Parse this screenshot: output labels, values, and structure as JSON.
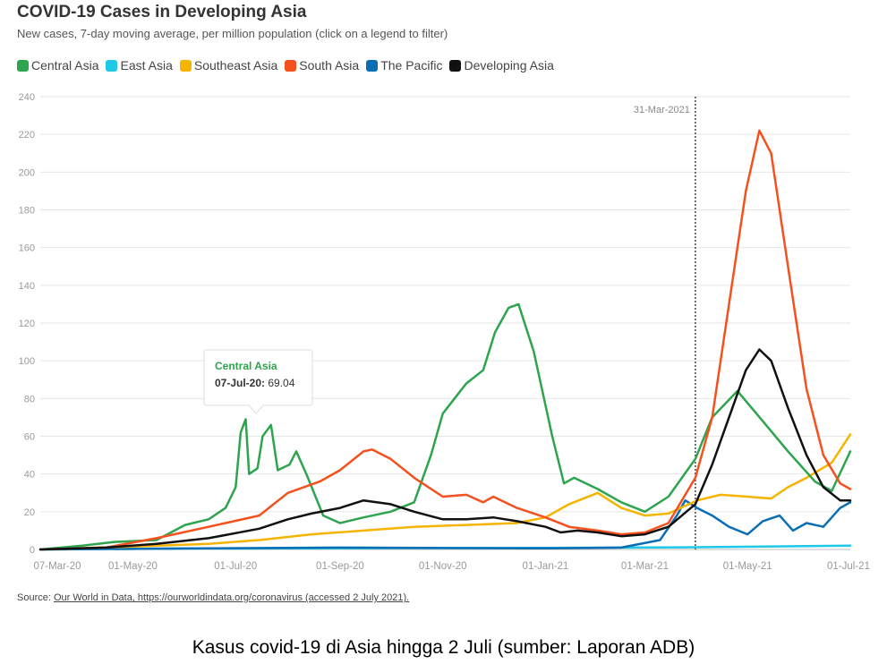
{
  "header": {
    "title": "COVID-19 Cases in Developing Asia",
    "subtitle": "New cases, 7-day moving average, per million population (click on a legend to filter)"
  },
  "footer": {
    "source_label": "Source:",
    "source_link_text": "Our World in Data, https://ourworldindata.org/coronavirus (accessed 2 July 2021).",
    "caption": "Kasus covid-19 di Asia hingga 2 Juli (sumber: Laporan ADB)"
  },
  "chart_data": {
    "type": "line",
    "title": "COVID-19 Cases in Developing Asia",
    "subtitle": "New cases, 7-day moving average, per million population (click on a legend to filter)",
    "xlabel": "",
    "ylabel": "",
    "x_tick_labels": [
      "07-Mar-20",
      "01-May-20",
      "01-Jul-20",
      "01-Sep-20",
      "01-Nov-20",
      "01-Jan-21",
      "01-Mar-21",
      "01-May-21",
      "01-Jul-21"
    ],
    "xlim": [
      "2020-03-07",
      "2021-07-01"
    ],
    "ylim": [
      0,
      240
    ],
    "yticks": [
      0,
      20,
      40,
      60,
      80,
      100,
      120,
      140,
      160,
      180,
      200,
      220,
      240
    ],
    "grid": true,
    "legend_position": "top-left",
    "annotation": {
      "date": "2021-03-31",
      "label": "31-Mar-2021"
    },
    "tooltip": {
      "series": "Central Asia",
      "date_label": "07-Jul-20:",
      "value": "69.04"
    },
    "series": [
      {
        "name": "Central Asia",
        "color": "#2ea44f",
        "points": [
          [
            "2020-03-07",
            0
          ],
          [
            "2020-04-01",
            2
          ],
          [
            "2020-04-20",
            4
          ],
          [
            "2020-05-15",
            5
          ],
          [
            "2020-06-01",
            13
          ],
          [
            "2020-06-15",
            16
          ],
          [
            "2020-06-25",
            22
          ],
          [
            "2020-07-01",
            33
          ],
          [
            "2020-07-04",
            62
          ],
          [
            "2020-07-07",
            69
          ],
          [
            "2020-07-09",
            40
          ],
          [
            "2020-07-14",
            43
          ],
          [
            "2020-07-17",
            60
          ],
          [
            "2020-07-22",
            66
          ],
          [
            "2020-07-26",
            42
          ],
          [
            "2020-08-02",
            45
          ],
          [
            "2020-08-06",
            52
          ],
          [
            "2020-08-12",
            40
          ],
          [
            "2020-08-22",
            18
          ],
          [
            "2020-09-01",
            14
          ],
          [
            "2020-09-15",
            17
          ],
          [
            "2020-10-01",
            20
          ],
          [
            "2020-10-15",
            25
          ],
          [
            "2020-10-25",
            50
          ],
          [
            "2020-11-01",
            72
          ],
          [
            "2020-11-08",
            80
          ],
          [
            "2020-11-15",
            88
          ],
          [
            "2020-11-25",
            95
          ],
          [
            "2020-12-02",
            115
          ],
          [
            "2020-12-10",
            128
          ],
          [
            "2020-12-16",
            130
          ],
          [
            "2020-12-25",
            105
          ],
          [
            "2021-01-05",
            60
          ],
          [
            "2021-01-12",
            35
          ],
          [
            "2021-01-18",
            38
          ],
          [
            "2021-02-01",
            32
          ],
          [
            "2021-02-15",
            25
          ],
          [
            "2021-03-01",
            20
          ],
          [
            "2021-03-15",
            28
          ],
          [
            "2021-03-31",
            48
          ],
          [
            "2021-04-10",
            70
          ],
          [
            "2021-04-25",
            84
          ],
          [
            "2021-05-10",
            68
          ],
          [
            "2021-05-25",
            52
          ],
          [
            "2021-06-10",
            36
          ],
          [
            "2021-06-20",
            31
          ],
          [
            "2021-07-01",
            52
          ]
        ]
      },
      {
        "name": "East Asia",
        "color": "#1ec8e6",
        "points": [
          [
            "2020-03-07",
            0
          ],
          [
            "2020-06-01",
            0.5
          ],
          [
            "2021-01-01",
            0.8
          ],
          [
            "2021-04-01",
            1.2
          ],
          [
            "2021-07-01",
            2
          ]
        ]
      },
      {
        "name": "Southeast Asia",
        "color": "#f5b400",
        "points": [
          [
            "2020-03-07",
            0
          ],
          [
            "2020-05-01",
            1.5
          ],
          [
            "2020-06-15",
            3
          ],
          [
            "2020-07-15",
            5
          ],
          [
            "2020-08-15",
            8
          ],
          [
            "2020-09-15",
            10
          ],
          [
            "2020-10-15",
            12
          ],
          [
            "2020-11-15",
            13
          ],
          [
            "2020-12-15",
            14
          ],
          [
            "2021-01-01",
            17
          ],
          [
            "2021-01-15",
            24
          ],
          [
            "2021-02-01",
            30
          ],
          [
            "2021-02-15",
            22
          ],
          [
            "2021-03-01",
            18
          ],
          [
            "2021-03-15",
            19
          ],
          [
            "2021-04-01",
            26
          ],
          [
            "2021-04-15",
            29
          ],
          [
            "2021-05-01",
            28
          ],
          [
            "2021-05-15",
            27
          ],
          [
            "2021-05-25",
            33
          ],
          [
            "2021-06-05",
            38
          ],
          [
            "2021-06-20",
            46
          ],
          [
            "2021-07-01",
            61
          ]
        ]
      },
      {
        "name": "South Asia",
        "color": "#f4511e",
        "points": [
          [
            "2020-03-07",
            0
          ],
          [
            "2020-04-15",
            1
          ],
          [
            "2020-05-15",
            6
          ],
          [
            "2020-06-15",
            12
          ],
          [
            "2020-07-15",
            18
          ],
          [
            "2020-08-01",
            30
          ],
          [
            "2020-08-20",
            36
          ],
          [
            "2020-09-01",
            42
          ],
          [
            "2020-09-15",
            52
          ],
          [
            "2020-09-20",
            53
          ],
          [
            "2020-10-01",
            48
          ],
          [
            "2020-10-15",
            38
          ],
          [
            "2020-11-01",
            28
          ],
          [
            "2020-11-15",
            29
          ],
          [
            "2020-11-25",
            25
          ],
          [
            "2020-12-01",
            28
          ],
          [
            "2020-12-15",
            22
          ],
          [
            "2021-01-01",
            17
          ],
          [
            "2021-01-15",
            12
          ],
          [
            "2021-02-01",
            10
          ],
          [
            "2021-02-15",
            8
          ],
          [
            "2021-03-01",
            9
          ],
          [
            "2021-03-15",
            14
          ],
          [
            "2021-03-31",
            38
          ],
          [
            "2021-04-10",
            70
          ],
          [
            "2021-04-20",
            130
          ],
          [
            "2021-04-30",
            190
          ],
          [
            "2021-05-08",
            222
          ],
          [
            "2021-05-15",
            210
          ],
          [
            "2021-05-25",
            150
          ],
          [
            "2021-06-05",
            85
          ],
          [
            "2021-06-15",
            50
          ],
          [
            "2021-06-25",
            35
          ],
          [
            "2021-07-01",
            32
          ]
        ]
      },
      {
        "name": "The Pacific",
        "color": "#0a6eb4",
        "points": [
          [
            "2020-03-07",
            0
          ],
          [
            "2020-06-01",
            0.5
          ],
          [
            "2020-09-01",
            1
          ],
          [
            "2021-01-01",
            0.6
          ],
          [
            "2021-02-15",
            1
          ],
          [
            "2021-03-10",
            5
          ],
          [
            "2021-03-20",
            18
          ],
          [
            "2021-03-25",
            26
          ],
          [
            "2021-04-01",
            22
          ],
          [
            "2021-04-10",
            18
          ],
          [
            "2021-04-20",
            12
          ],
          [
            "2021-05-01",
            8
          ],
          [
            "2021-05-10",
            15
          ],
          [
            "2021-05-20",
            18
          ],
          [
            "2021-05-28",
            10
          ],
          [
            "2021-06-05",
            14
          ],
          [
            "2021-06-15",
            12
          ],
          [
            "2021-06-25",
            22
          ],
          [
            "2021-07-01",
            25
          ]
        ]
      },
      {
        "name": "Developing Asia",
        "color": "#111111",
        "points": [
          [
            "2020-03-07",
            0
          ],
          [
            "2020-04-15",
            1
          ],
          [
            "2020-05-15",
            3
          ],
          [
            "2020-06-15",
            6
          ],
          [
            "2020-07-15",
            11
          ],
          [
            "2020-08-01",
            16
          ],
          [
            "2020-08-15",
            19
          ],
          [
            "2020-09-01",
            22
          ],
          [
            "2020-09-15",
            26
          ],
          [
            "2020-10-01",
            24
          ],
          [
            "2020-10-15",
            20
          ],
          [
            "2020-11-01",
            16
          ],
          [
            "2020-11-15",
            16
          ],
          [
            "2020-12-01",
            17
          ],
          [
            "2020-12-15",
            15
          ],
          [
            "2021-01-01",
            12
          ],
          [
            "2021-01-10",
            9
          ],
          [
            "2021-01-20",
            10
          ],
          [
            "2021-02-01",
            9
          ],
          [
            "2021-02-15",
            7
          ],
          [
            "2021-03-01",
            8
          ],
          [
            "2021-03-15",
            12
          ],
          [
            "2021-03-31",
            24
          ],
          [
            "2021-04-10",
            45
          ],
          [
            "2021-04-20",
            70
          ],
          [
            "2021-04-30",
            95
          ],
          [
            "2021-05-08",
            106
          ],
          [
            "2021-05-15",
            100
          ],
          [
            "2021-05-25",
            75
          ],
          [
            "2021-06-05",
            50
          ],
          [
            "2021-06-15",
            33
          ],
          [
            "2021-06-25",
            26
          ],
          [
            "2021-07-01",
            26
          ]
        ]
      }
    ]
  }
}
